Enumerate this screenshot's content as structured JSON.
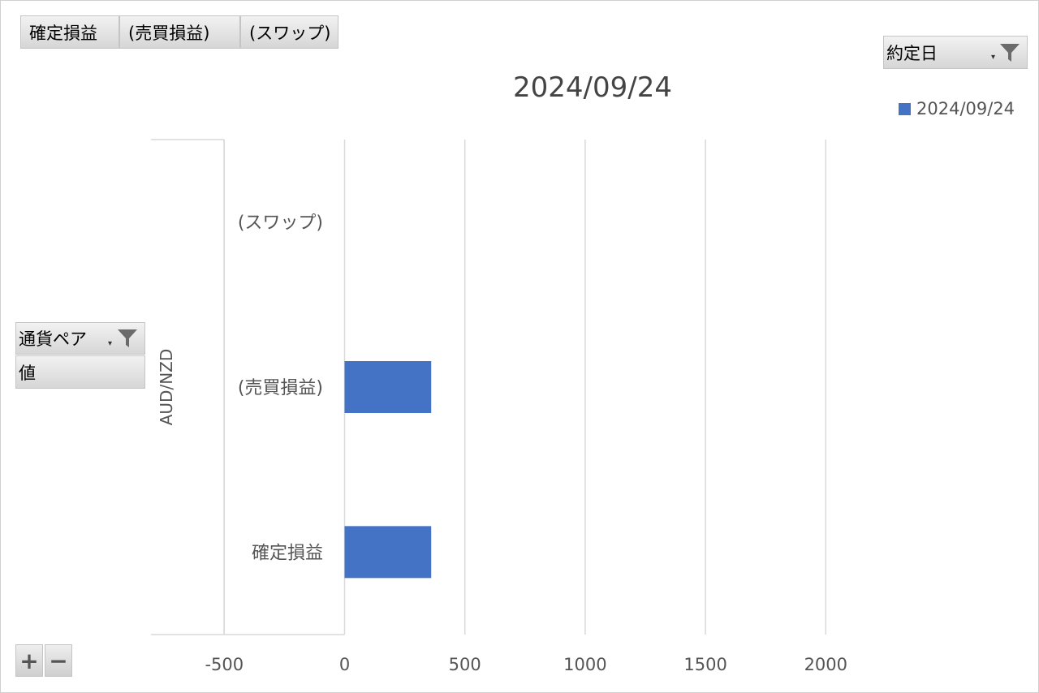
{
  "value_fields": [
    "確定損益",
    "(売買損益)",
    "(スワップ)"
  ],
  "column_field": {
    "label": "約定日"
  },
  "row_field": {
    "label": "通貨ペア"
  },
  "values_label": "値",
  "controls": {
    "expand": "+",
    "collapse": "−"
  },
  "colors": {
    "bar": "#4472c4",
    "grid": "#d9d9d9"
  },
  "icons": {
    "filter": "funnel-icon",
    "dropdown": "chevron-down-icon"
  },
  "chart_data": {
    "type": "bar",
    "orientation": "horizontal",
    "title": "2024/09/24",
    "group": "AUD/NZD",
    "categories": [
      "(スワップ)",
      "(売買損益)",
      "確定損益"
    ],
    "series": [
      {
        "name": "2024/09/24",
        "values": [
          0,
          360,
          360
        ]
      }
    ],
    "xlim": [
      -800,
      2300
    ],
    "xticks": [
      -500,
      0,
      500,
      1000,
      1500,
      2000
    ],
    "grid": true,
    "legend": "top-right"
  }
}
